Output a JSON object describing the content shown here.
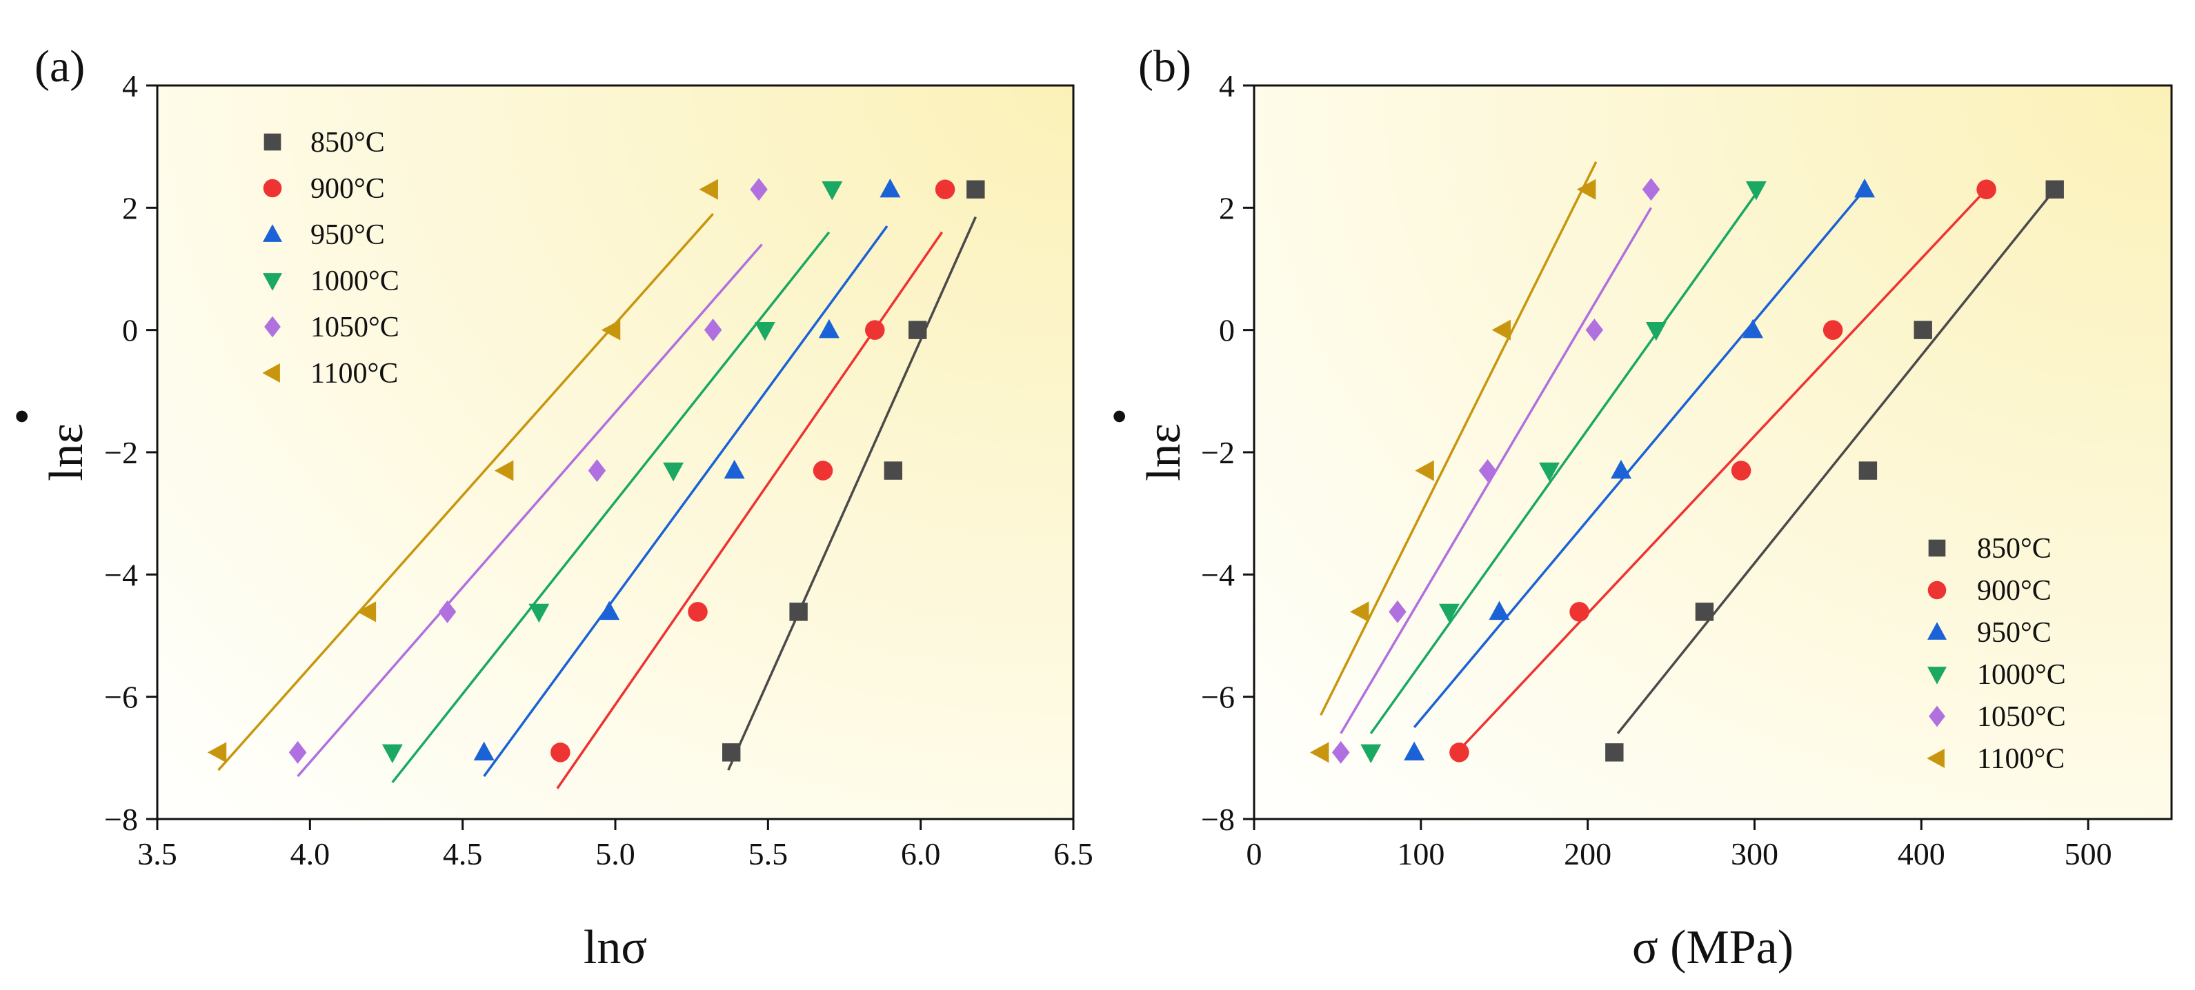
{
  "colors": {
    "850": "#4a4a4a",
    "900": "#ee3333",
    "950": "#1a62d6",
    "1000": "#1aa863",
    "1050": "#b070e0",
    "1100": "#c8960e",
    "bg_light": "#fffffb",
    "bg_dark": "#fbf1b8"
  },
  "chart_data": [
    {
      "type": "scatter",
      "panel_label": "(a)",
      "xlabel": "lnσ",
      "ylabel": "lnε̇",
      "ylabel_main": "lnε",
      "ylabel_dot": "•",
      "xlim": [
        3.5,
        6.5
      ],
      "ylim": [
        -8,
        4
      ],
      "xticks": [
        "3.5",
        "4.0",
        "4.5",
        "5.0",
        "5.5",
        "6.0",
        "6.5"
      ],
      "yticks": [
        "−8",
        "−6",
        "−4",
        "−2",
        "0",
        "2",
        "4"
      ],
      "legend_position": "top-left",
      "series": [
        {
          "name": "850°C",
          "key": "850",
          "marker": "square",
          "x": [
            5.38,
            5.6,
            5.91,
            5.99,
            6.18
          ],
          "y": [
            -6.91,
            -4.61,
            -2.3,
            0.0,
            2.3
          ],
          "fit": [
            [
              5.37,
              -7.2
            ],
            [
              6.18,
              1.85
            ]
          ]
        },
        {
          "name": "900°C",
          "key": "900",
          "marker": "circle",
          "x": [
            4.82,
            5.27,
            5.68,
            5.85,
            6.08
          ],
          "y": [
            -6.91,
            -4.61,
            -2.3,
            0.0,
            2.3
          ],
          "fit": [
            [
              4.81,
              -7.5
            ],
            [
              6.07,
              1.6
            ]
          ]
        },
        {
          "name": "950°C",
          "key": "950",
          "marker": "triangle-up",
          "x": [
            4.57,
            4.98,
            5.39,
            5.7,
            5.9
          ],
          "y": [
            -6.91,
            -4.61,
            -2.3,
            0.0,
            2.3
          ],
          "fit": [
            [
              4.57,
              -7.3
            ],
            [
              5.89,
              1.7
            ]
          ]
        },
        {
          "name": "1000°C",
          "key": "1000",
          "marker": "triangle-down",
          "x": [
            4.27,
            4.75,
            5.19,
            5.49,
            5.71
          ],
          "y": [
            -6.91,
            -4.61,
            -2.3,
            0.0,
            2.3
          ],
          "fit": [
            [
              4.27,
              -7.4
            ],
            [
              5.7,
              1.6
            ]
          ]
        },
        {
          "name": "1050°C",
          "key": "1050",
          "marker": "diamond",
          "x": [
            3.96,
            4.45,
            4.94,
            5.32,
            5.47
          ],
          "y": [
            -6.91,
            -4.61,
            -2.3,
            0.0,
            2.3
          ],
          "fit": [
            [
              3.96,
              -7.3
            ],
            [
              5.48,
              1.4
            ]
          ]
        },
        {
          "name": "1100°C",
          "key": "1100",
          "marker": "triangle-left",
          "x": [
            3.7,
            4.19,
            4.64,
            4.99,
            5.31
          ],
          "y": [
            -6.91,
            -4.61,
            -2.3,
            0.0,
            2.3
          ],
          "fit": [
            [
              3.7,
              -7.2
            ],
            [
              5.32,
              1.9
            ]
          ]
        }
      ]
    },
    {
      "type": "scatter",
      "panel_label": "(b)",
      "xlabel": "σ (MPa)",
      "ylabel": "lnε̇",
      "ylabel_main": "lnε",
      "ylabel_dot": "•",
      "xlim": [
        0,
        550
      ],
      "ylim": [
        -8,
        4
      ],
      "xticks": [
        "0",
        "100",
        "200",
        "300",
        "400",
        "500"
      ],
      "yticks": [
        "−8",
        "−6",
        "−4",
        "−2",
        "0",
        "2",
        "4"
      ],
      "legend_position": "bottom-right",
      "series": [
        {
          "name": "850°C",
          "key": "850",
          "marker": "square",
          "x": [
            216,
            270,
            368,
            401,
            480
          ],
          "y": [
            -6.91,
            -4.61,
            -2.3,
            0.0,
            2.3
          ],
          "fit": [
            [
              218,
              -6.6
            ],
            [
              480,
              2.3
            ]
          ]
        },
        {
          "name": "900°C",
          "key": "900",
          "marker": "circle",
          "x": [
            123,
            195,
            292,
            347,
            439
          ],
          "y": [
            -6.91,
            -4.61,
            -2.3,
            0.0,
            2.3
          ],
          "fit": [
            [
              122,
              -6.9
            ],
            [
              439,
              2.3
            ]
          ]
        },
        {
          "name": "950°C",
          "key": "950",
          "marker": "triangle-up",
          "x": [
            96,
            147,
            220,
            299,
            366
          ],
          "y": [
            -6.91,
            -4.61,
            -2.3,
            0.0,
            2.3
          ],
          "fit": [
            [
              96,
              -6.5
            ],
            [
              366,
              2.3
            ]
          ]
        },
        {
          "name": "1000°C",
          "key": "1000",
          "marker": "triangle-down",
          "x": [
            70,
            117,
            177,
            241,
            301
          ],
          "y": [
            -6.91,
            -4.61,
            -2.3,
            0.0,
            2.3
          ],
          "fit": [
            [
              70,
              -6.6
            ],
            [
              304,
              2.35
            ]
          ]
        },
        {
          "name": "1050°C",
          "key": "1050",
          "marker": "diamond",
          "x": [
            52,
            86,
            140,
            204,
            238
          ],
          "y": [
            -6.91,
            -4.61,
            -2.3,
            0.0,
            2.3
          ],
          "fit": [
            [
              52,
              -6.6
            ],
            [
              238,
              2.0
            ]
          ]
        },
        {
          "name": "1100°C",
          "key": "1100",
          "marker": "triangle-left",
          "x": [
            40,
            64,
            103,
            149,
            200
          ],
          "y": [
            -6.91,
            -4.61,
            -2.3,
            0.0,
            2.3
          ],
          "fit": [
            [
              40,
              -6.3
            ],
            [
              205,
              2.75
            ]
          ]
        }
      ]
    }
  ]
}
